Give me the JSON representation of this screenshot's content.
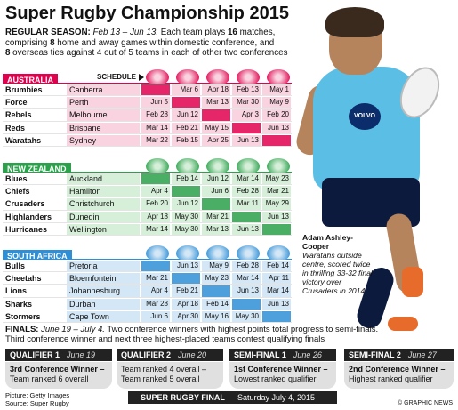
{
  "title": "Super Rugby Championship 2015",
  "intro": {
    "label": "REGULAR SEASON:",
    "dates": "Feb 13 – Jun 13.",
    "line1": " Each team plays ",
    "matches": "16",
    "line1b": " matches,",
    "line2a": "comprising ",
    "home_away": "8",
    "line2b": " home and away games within domestic conference, and",
    "overseas": "8",
    "line3": " overseas ties against 4 out of 5 teams in each of other two conferences"
  },
  "schedule_label": "SCHEDULE",
  "conferences": [
    {
      "name": "AUSTRALIA",
      "color": "#e0004d",
      "light": "#f9d3e0",
      "teams": [
        {
          "team": "Brumbies",
          "city": "Canberra",
          "dates": [
            "",
            "Mar 6",
            "Apr 18",
            "Feb 13",
            "May 1"
          ]
        },
        {
          "team": "Force",
          "city": "Perth",
          "dates": [
            "Jun 5",
            "",
            "Mar 13",
            "Mar 30",
            "May 9"
          ]
        },
        {
          "team": "Rebels",
          "city": "Melbourne",
          "dates": [
            "Feb 28",
            "Jun 12",
            "",
            "Apr 3",
            "Feb 20"
          ]
        },
        {
          "team": "Reds",
          "city": "Brisbane",
          "dates": [
            "Mar 14",
            "Feb 21",
            "May 15",
            "",
            "Jun 13"
          ]
        },
        {
          "team": "Waratahs",
          "city": "Sydney",
          "dates": [
            "Mar 22",
            "Feb 15",
            "Apr 25",
            "Jun 13",
            ""
          ]
        }
      ]
    },
    {
      "name": "NEW ZEALAND",
      "color": "#2aa14a",
      "light": "#d6efd9",
      "teams": [
        {
          "team": "Blues",
          "city": "Auckland",
          "dates": [
            "",
            "Feb 14",
            "Jun 12",
            "Mar 14",
            "May 23"
          ]
        },
        {
          "team": "Chiefs",
          "city": "Hamilton",
          "dates": [
            "Apr 4",
            "",
            "Jun 6",
            "Feb 28",
            "Mar 21"
          ]
        },
        {
          "team": "Crusaders",
          "city": "Christchurch",
          "dates": [
            "Feb 20",
            "Jun 12",
            "",
            "Mar 11",
            "May 29"
          ]
        },
        {
          "team": "Highlanders",
          "city": "Dunedin",
          "dates": [
            "Apr 18",
            "May 30",
            "Mar 21",
            "",
            "Jun 13"
          ]
        },
        {
          "team": "Hurricanes",
          "city": "Wellington",
          "dates": [
            "Mar 14",
            "May 30",
            "Mar 13",
            "Jun 13",
            ""
          ]
        }
      ]
    },
    {
      "name": "SOUTH AFRICA",
      "color": "#2f8fd6",
      "light": "#d3e7f6",
      "teams": [
        {
          "team": "Bulls",
          "city": "Pretoria",
          "dates": [
            "",
            "Jun 13",
            "May 9",
            "Feb 28",
            "Feb 14"
          ]
        },
        {
          "team": "Cheetahs",
          "city": "Bloemfontein",
          "dates": [
            "Mar 21",
            "",
            "May 23",
            "Mar 14",
            "Apr 11"
          ]
        },
        {
          "team": "Lions",
          "city": "Johannesburg",
          "dates": [
            "Apr 4",
            "Feb 21",
            "",
            "Jun 13",
            "Mar 14"
          ]
        },
        {
          "team": "Sharks",
          "city": "Durban",
          "dates": [
            "Mar 28",
            "Apr 18",
            "Feb 14",
            "",
            "Jun 13"
          ]
        },
        {
          "team": "Stormers",
          "city": "Cape Town",
          "dates": [
            "Jun 6",
            "Apr 30",
            "May 16",
            "May 30",
            ""
          ]
        }
      ]
    }
  ],
  "caption": {
    "name": "Adam Ashley-Cooper",
    "text": "Waratahs outside centre, scored twice in thrilling 33-32 final victory over Crusaders in 2014"
  },
  "finals": {
    "label": "FINALS:",
    "dates": "June 19 – July 4.",
    "text1": " Two conference winners with highest points total progress to semi-finals.",
    "text2": "Third conference winner and next three highest-placed teams contest qualifying finals"
  },
  "playoffs": [
    {
      "title": "QUALIFIER 1",
      "date": "June 19",
      "line1": "3rd Conference Winner",
      "line1b": " –",
      "line2": "Team ranked 6 overall"
    },
    {
      "title": "QUALIFIER 2",
      "date": "June 20",
      "line1": "",
      "line1b": "",
      "line2": "Team ranked 4 overall –\nTeam ranked 5 overall"
    },
    {
      "title": "SEMI-FINAL 1",
      "date": "June 26",
      "line1": "1st Conference Winner",
      "line1b": " –",
      "line2": "Lowest ranked qualifier"
    },
    {
      "title": "SEMI-FINAL 2",
      "date": "June 27",
      "line1": "2nd Conference Winner",
      "line1b": " –",
      "line2": "Highest ranked qualifier"
    }
  ],
  "final": {
    "title": "SUPER RUGBY FINAL",
    "date": "Saturday July 4, 2015"
  },
  "credits": {
    "picture": "Picture: Getty Images",
    "source": "Source: Super Rugby"
  },
  "copyright": "© GRAPHIC NEWS",
  "sponsor_text": "VOLVO"
}
